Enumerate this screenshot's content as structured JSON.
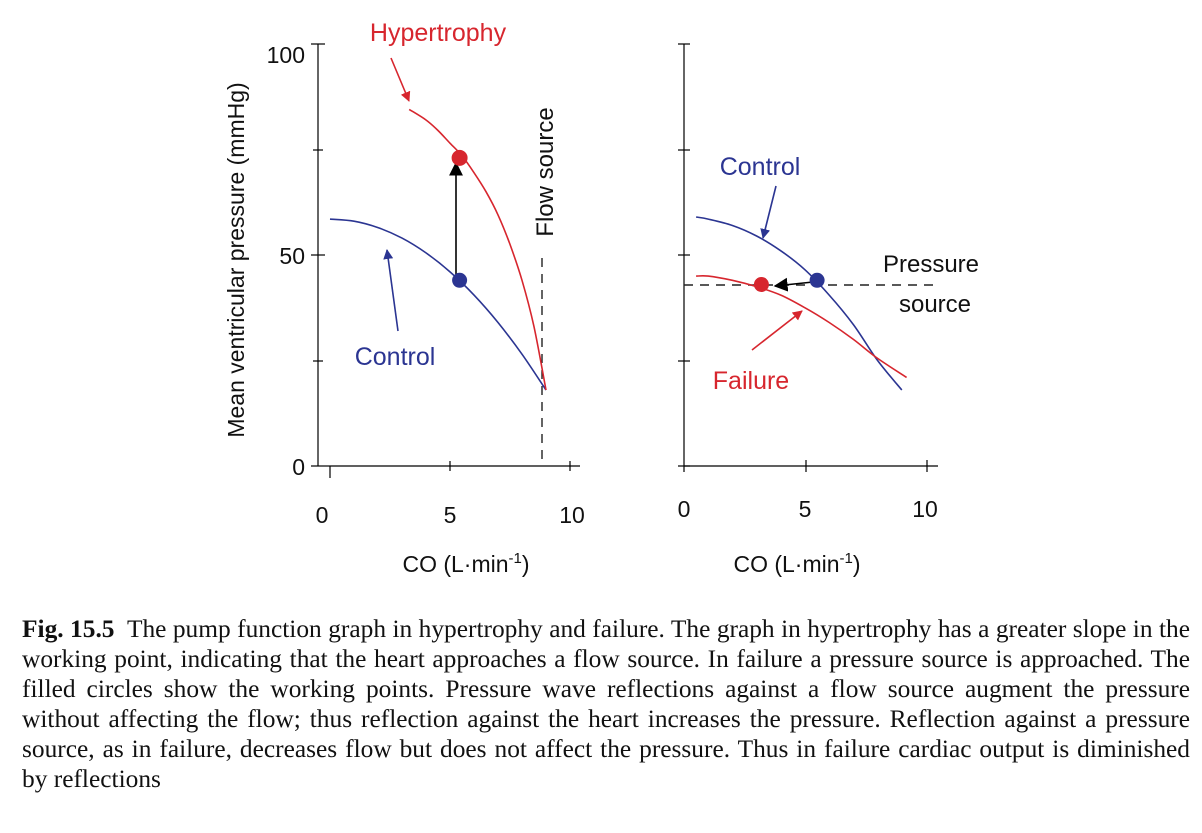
{
  "chart_data": [
    {
      "type": "line",
      "xlabel": "CO (L·min",
      "xlabel_sup": "-1",
      "xlabel_close": ")",
      "ylabel": "Mean ventricular pressure (mmHg)",
      "x_ticks": [
        "0",
        "5",
        "10"
      ],
      "y_ticks": [
        "0",
        "50",
        "100"
      ],
      "xlim": [
        0,
        10
      ],
      "ylim": [
        0,
        100
      ],
      "series": [
        {
          "name": "Control",
          "color": "#2b3592",
          "x": [
            0,
            1,
            2,
            3,
            4,
            5,
            6,
            7,
            8,
            9
          ],
          "y": [
            58.5,
            58,
            56.5,
            54,
            50.5,
            46,
            40.5,
            34,
            26.5,
            18
          ]
        },
        {
          "name": "Hypertrophy",
          "color": "#d7262e",
          "x": [
            3.3,
            4,
            4.5,
            5,
            5.5,
            6,
            6.5,
            7,
            7.5,
            8,
            8.5,
            9
          ],
          "y": [
            84.5,
            82,
            79.5,
            76.5,
            73.5,
            69.5,
            65,
            59.5,
            52.5,
            44,
            33,
            18
          ]
        }
      ],
      "working_points": [
        {
          "x": 5.4,
          "y": 44,
          "color": "#2b3592"
        },
        {
          "x": 5.4,
          "y": 73,
          "color": "#d7262e"
        }
      ],
      "reference_line": {
        "label": "Flow source",
        "x": 9
      },
      "annotations": [
        {
          "text": "Hypertrophy",
          "color": "#d7262e"
        },
        {
          "text": "Control",
          "color": "#2b3592"
        }
      ]
    },
    {
      "type": "line",
      "xlabel": "CO (L·min",
      "xlabel_sup": "-1",
      "xlabel_close": ")",
      "x_ticks": [
        "0",
        "5",
        "10"
      ],
      "xlim": [
        0,
        10
      ],
      "ylim": [
        0,
        100
      ],
      "series": [
        {
          "name": "Control",
          "color": "#2b3592",
          "x": [
            0.5,
            1,
            2,
            3,
            4,
            5,
            6,
            7,
            8,
            9
          ],
          "y": [
            59,
            58.5,
            57,
            54.5,
            51,
            46.5,
            40.5,
            33.5,
            25,
            18
          ]
        },
        {
          "name": "Failure",
          "color": "#d7262e",
          "x": [
            0.5,
            1,
            2,
            3,
            4,
            5,
            6,
            7,
            8,
            9.2
          ],
          "y": [
            45,
            45,
            44,
            42.5,
            40.5,
            37.5,
            34,
            30,
            25.5,
            21
          ]
        }
      ],
      "working_points": [
        {
          "x": 5.5,
          "y": 44,
          "color": "#2b3592"
        },
        {
          "x": 3.2,
          "y": 43,
          "color": "#d7262e"
        }
      ],
      "reference_line": {
        "label_line1": "Pressure",
        "label_line2": "source",
        "y": 43
      },
      "annotations": [
        {
          "text": "Control",
          "color": "#2b3592"
        },
        {
          "text": "Failure",
          "color": "#d7262e"
        }
      ]
    }
  ],
  "caption": {
    "label": "Fig. 15.5",
    "text": "The pump function graph in hypertrophy and failure. The graph in hypertrophy has a greater slope in the working point, indicating that the heart approaches a flow source. In failure a pressure source is approached. The filled circles show the working points. Pressure wave reflections against a flow source augment the pressure without affecting the flow; thus reflection against the heart increases the pressure. Reflection against a pressure source, as in failure, decreases flow but does not affect the pressure. Thus in failure cardiac output is diminished by reflections"
  }
}
